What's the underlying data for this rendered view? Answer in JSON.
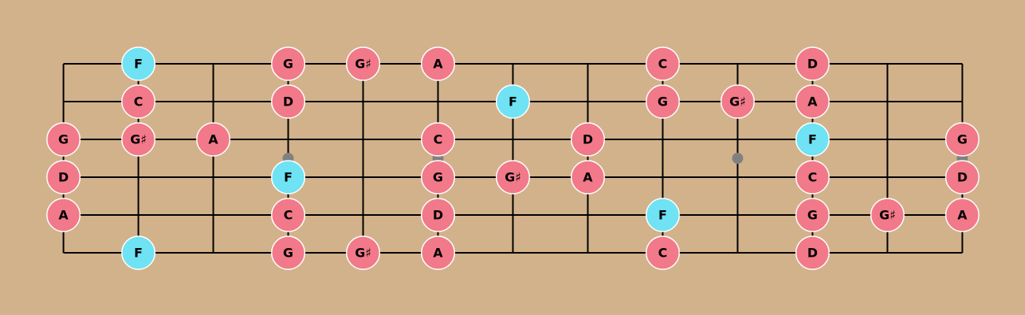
{
  "colors": {
    "background": "#d2b28b",
    "line": "#000000",
    "note_default": "#f27989",
    "note_highlight": "#6fe2f4",
    "note_stroke": "#ffffff",
    "marker": "#808080"
  },
  "fretboard": {
    "string_count": 6,
    "fret_count": 12,
    "fret_markers": [
      3,
      5,
      9,
      12
    ],
    "strings": [
      {
        "notes": [
          {
            "fret": 1,
            "label": "F",
            "highlight": true
          },
          {
            "fret": 3,
            "label": "G",
            "highlight": false
          },
          {
            "fret": 4,
            "label": "G♯",
            "highlight": false
          },
          {
            "fret": 5,
            "label": "A",
            "highlight": false
          },
          {
            "fret": 8,
            "label": "C",
            "highlight": false
          },
          {
            "fret": 10,
            "label": "D",
            "highlight": false
          }
        ]
      },
      {
        "notes": [
          {
            "fret": 1,
            "label": "C",
            "highlight": false
          },
          {
            "fret": 3,
            "label": "D",
            "highlight": false
          },
          {
            "fret": 6,
            "label": "F",
            "highlight": true
          },
          {
            "fret": 8,
            "label": "G",
            "highlight": false
          },
          {
            "fret": 9,
            "label": "G♯",
            "highlight": false
          },
          {
            "fret": 10,
            "label": "A",
            "highlight": false
          }
        ]
      },
      {
        "notes": [
          {
            "fret": 0,
            "label": "G",
            "highlight": false
          },
          {
            "fret": 1,
            "label": "G♯",
            "highlight": false
          },
          {
            "fret": 2,
            "label": "A",
            "highlight": false
          },
          {
            "fret": 5,
            "label": "C",
            "highlight": false
          },
          {
            "fret": 7,
            "label": "D",
            "highlight": false
          },
          {
            "fret": 10,
            "label": "F",
            "highlight": true
          },
          {
            "fret": 12,
            "label": "G",
            "highlight": false
          }
        ]
      },
      {
        "notes": [
          {
            "fret": 0,
            "label": "D",
            "highlight": false
          },
          {
            "fret": 3,
            "label": "F",
            "highlight": true
          },
          {
            "fret": 5,
            "label": "G",
            "highlight": false
          },
          {
            "fret": 6,
            "label": "G♯",
            "highlight": false
          },
          {
            "fret": 7,
            "label": "A",
            "highlight": false
          },
          {
            "fret": 10,
            "label": "C",
            "highlight": false
          },
          {
            "fret": 12,
            "label": "D",
            "highlight": false
          }
        ]
      },
      {
        "notes": [
          {
            "fret": 0,
            "label": "A",
            "highlight": false
          },
          {
            "fret": 3,
            "label": "C",
            "highlight": false
          },
          {
            "fret": 5,
            "label": "D",
            "highlight": false
          },
          {
            "fret": 8,
            "label": "F",
            "highlight": true
          },
          {
            "fret": 10,
            "label": "G",
            "highlight": false
          },
          {
            "fret": 11,
            "label": "G♯",
            "highlight": false
          },
          {
            "fret": 12,
            "label": "A",
            "highlight": false
          }
        ]
      },
      {
        "notes": [
          {
            "fret": 1,
            "label": "F",
            "highlight": true
          },
          {
            "fret": 3,
            "label": "G",
            "highlight": false
          },
          {
            "fret": 4,
            "label": "G♯",
            "highlight": false
          },
          {
            "fret": 5,
            "label": "A",
            "highlight": false
          },
          {
            "fret": 8,
            "label": "C",
            "highlight": false
          },
          {
            "fret": 10,
            "label": "D",
            "highlight": false
          }
        ]
      }
    ]
  }
}
